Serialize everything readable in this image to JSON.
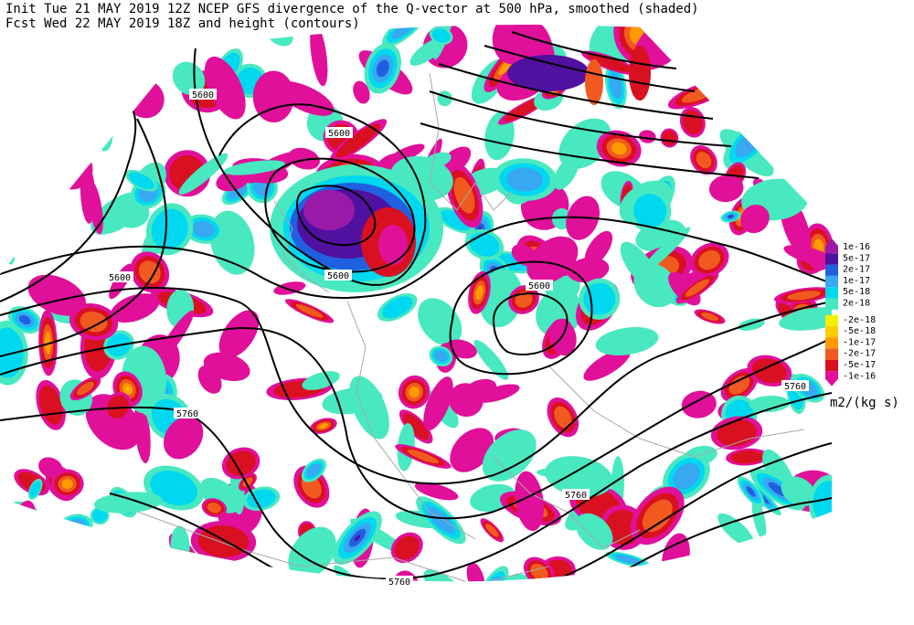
{
  "header": {
    "line1": "Init  Tue 21 MAY 2019 12Z  NCEP GFS divergence of the Q-vector at 500 hPa, smoothed (shaded)",
    "line2": "Fcst Wed 22 MAY 2019 18Z  and height (contours)"
  },
  "contour_labels": [
    "5600",
    "5600",
    "5600",
    "5600",
    "5600",
    "5760",
    "5760",
    "5760",
    "5760"
  ],
  "colorbar": {
    "labels": [
      "1e-16",
      "5e-17",
      "2e-17",
      "1e-17",
      "5e-18",
      "2e-18",
      "-2e-18",
      "-5e-18",
      "-1e-17",
      "-2e-17",
      "-5e-17",
      "-1e-16"
    ],
    "unit": "m2/(kg s)"
  }
}
